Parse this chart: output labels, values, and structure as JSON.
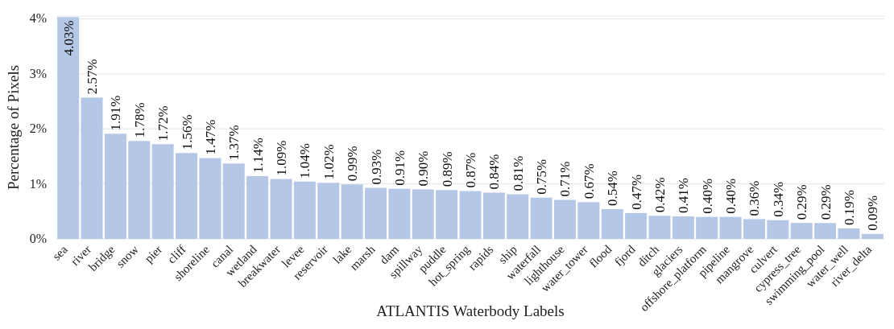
{
  "chart_data": {
    "type": "bar",
    "xlabel": "ATLANTIS Waterbody Labels",
    "ylabel": "Percentage of Pixels",
    "categories": [
      "sea",
      "river",
      "bridge",
      "snow",
      "pier",
      "cliff",
      "shoreline",
      "canal",
      "wetland",
      "breakwater",
      "levee",
      "reservoir",
      "lake",
      "marsh",
      "dam",
      "spillway",
      "puddle",
      "hot_spring",
      "rapids",
      "ship",
      "waterfall",
      "lighthouse",
      "water_tower",
      "flood",
      "fjord",
      "ditch",
      "glaciers",
      "offshore_platform",
      "pipeline",
      "mangrove",
      "culvert",
      "cypress_tree",
      "swimming_pool",
      "water_well",
      "river_delta"
    ],
    "values": [
      4.03,
      2.57,
      1.91,
      1.78,
      1.72,
      1.56,
      1.47,
      1.37,
      1.14,
      1.09,
      1.04,
      1.02,
      0.99,
      0.93,
      0.91,
      0.9,
      0.89,
      0.87,
      0.84,
      0.81,
      0.75,
      0.71,
      0.67,
      0.54,
      0.47,
      0.42,
      0.41,
      0.4,
      0.4,
      0.36,
      0.34,
      0.29,
      0.29,
      0.19,
      0.09
    ],
    "value_labels": [
      "4.03%",
      "2.57%",
      "1.91%",
      "1.78%",
      "1.72%",
      "1.56%",
      "1.47%",
      "1.37%",
      "1.14%",
      "1.09%",
      "1.04%",
      "1.02%",
      "0.99%",
      "0.93%",
      "0.91%",
      "0.90%",
      "0.89%",
      "0.87%",
      "0.84%",
      "0.81%",
      "0.75%",
      "0.71%",
      "0.67%",
      "0.54%",
      "0.47%",
      "0.42%",
      "0.41%",
      "0.40%",
      "0.40%",
      "0.36%",
      "0.34%",
      "0.29%",
      "0.29%",
      "0.19%",
      "0.09%"
    ],
    "color": "#b4c7e7",
    "ylim": [
      0,
      4.05
    ],
    "yticks": [
      {
        "value": 0,
        "label": "0%"
      },
      {
        "value": 1,
        "label": "1%"
      },
      {
        "value": 2,
        "label": "2%"
      },
      {
        "value": 3,
        "label": "3%"
      },
      {
        "value": 4,
        "label": "4%"
      }
    ],
    "grid": "y"
  }
}
